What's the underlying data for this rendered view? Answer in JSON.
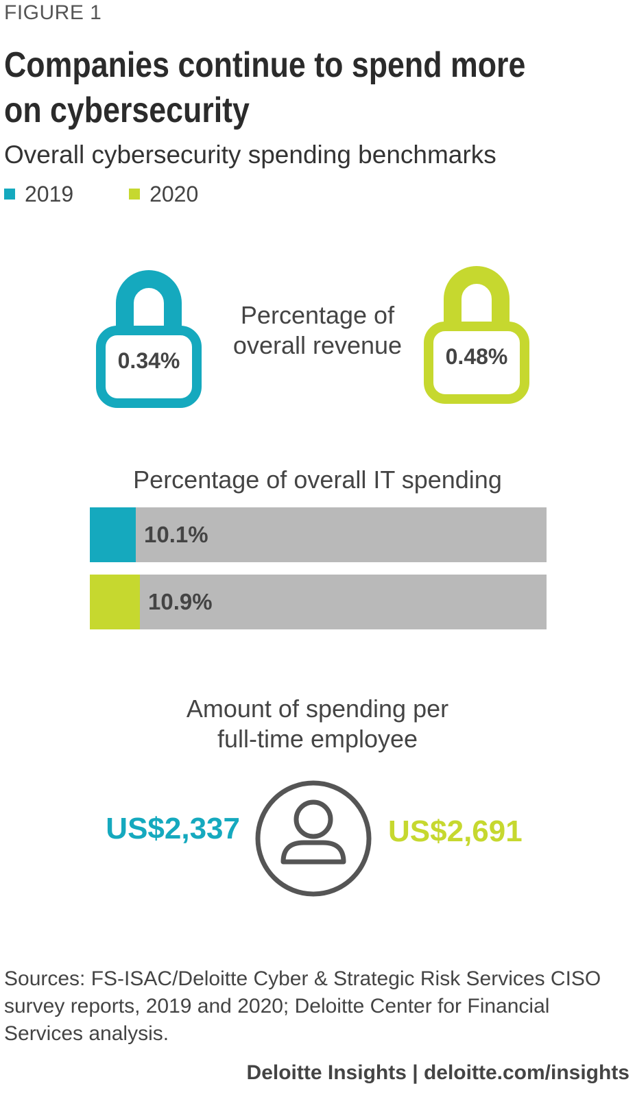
{
  "figure_label": "FIGURE 1",
  "title": "Companies continue to spend more on cybersecurity",
  "subtitle": "Overall cybersecurity spending benchmarks",
  "legend": [
    {
      "label": "2019",
      "color": "#15a9be"
    },
    {
      "label": "2020",
      "color": "#c6d82f"
    }
  ],
  "chart_data": [
    {
      "type": "table",
      "label_lines": [
        "Percentage of",
        "overall revenue"
      ],
      "series": [
        {
          "name": "2019",
          "value": 0.34,
          "display": "0.34%"
        },
        {
          "name": "2020",
          "value": 0.48,
          "display": "0.48%"
        }
      ],
      "icon": "padlock-icon"
    },
    {
      "type": "bar",
      "title": "Percentage of overall IT spending",
      "categories": [
        "2019",
        "2020"
      ],
      "values": [
        10.1,
        10.9
      ],
      "labels": [
        "10.1%",
        "10.9%"
      ],
      "ylim": [
        0,
        100
      ],
      "colors": [
        "#15a9be",
        "#c6d82f"
      ],
      "track_color": "#b9b9b9"
    },
    {
      "type": "table",
      "label_lines": [
        "Amount of spending per",
        "full-time employee"
      ],
      "series": [
        {
          "name": "2019",
          "value": 2337,
          "display": "US$2,337"
        },
        {
          "name": "2020",
          "value": 2691,
          "display": "US$2,691"
        }
      ],
      "icon": "person-icon"
    }
  ],
  "sources": "Sources: FS-ISAC/Deloitte Cyber & Strategic Risk Services CISO survey reports, 2019 and 2020; Deloitte Center for Financial Services analysis.",
  "footer": "Deloitte Insights | deloitte.com/insights"
}
